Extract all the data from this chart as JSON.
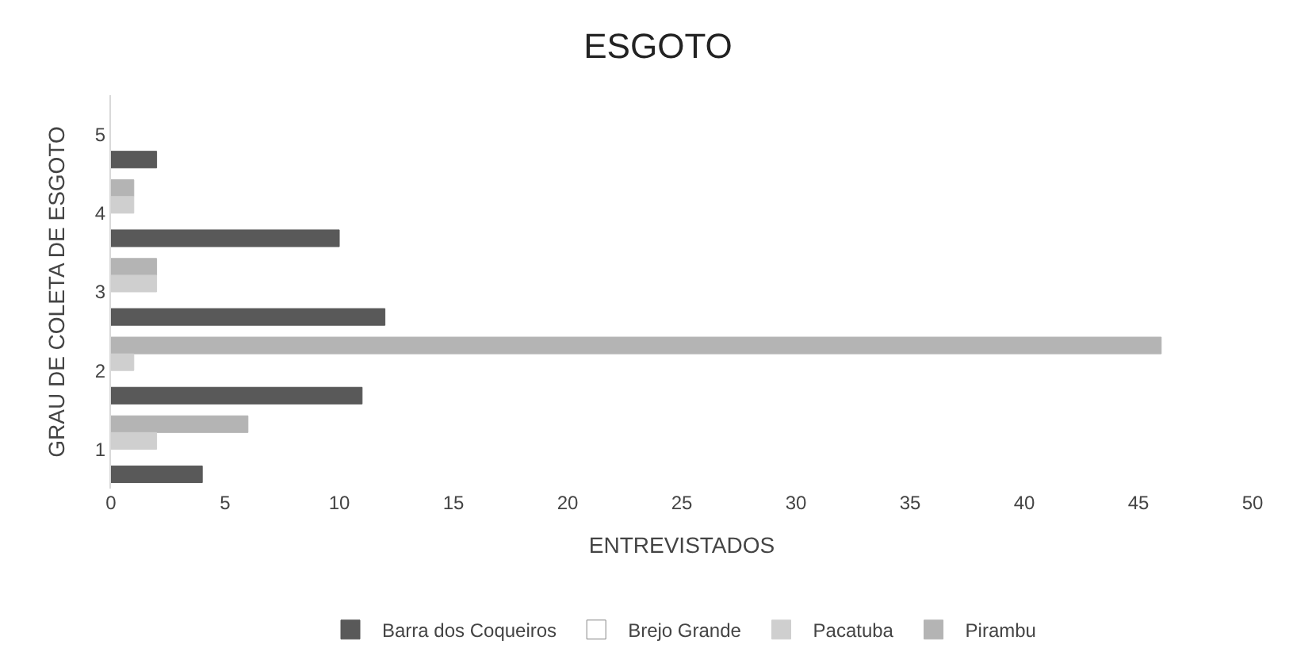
{
  "chart_data": {
    "type": "bar",
    "orientation": "horizontal",
    "title": "ESGOTO",
    "xlabel": "ENTREVISTADOS",
    "ylabel": "GRAU DE COLETA DE ESGOTO",
    "categories": [
      "5",
      "4",
      "3",
      "2",
      "1"
    ],
    "series": [
      {
        "name": "Barra dos Coqueiros",
        "color": "#595959",
        "values": [
          2,
          10,
          12,
          11,
          4
        ]
      },
      {
        "name": "Brejo Grande",
        "color": "#ffffff",
        "values": [
          null,
          null,
          null,
          null,
          null
        ]
      },
      {
        "name": "Pacatuba",
        "color": "#cfcfcf",
        "values": [
          null,
          1,
          2,
          1,
          2
        ]
      },
      {
        "name": "Pirambu",
        "color": "#b4b4b4",
        "values": [
          null,
          1,
          2,
          46,
          6
        ]
      }
    ],
    "xlim": [
      0,
      50
    ],
    "xticks": [
      0,
      5,
      10,
      15,
      20,
      25,
      30,
      35,
      40,
      45,
      50
    ],
    "legend": "bottom"
  }
}
